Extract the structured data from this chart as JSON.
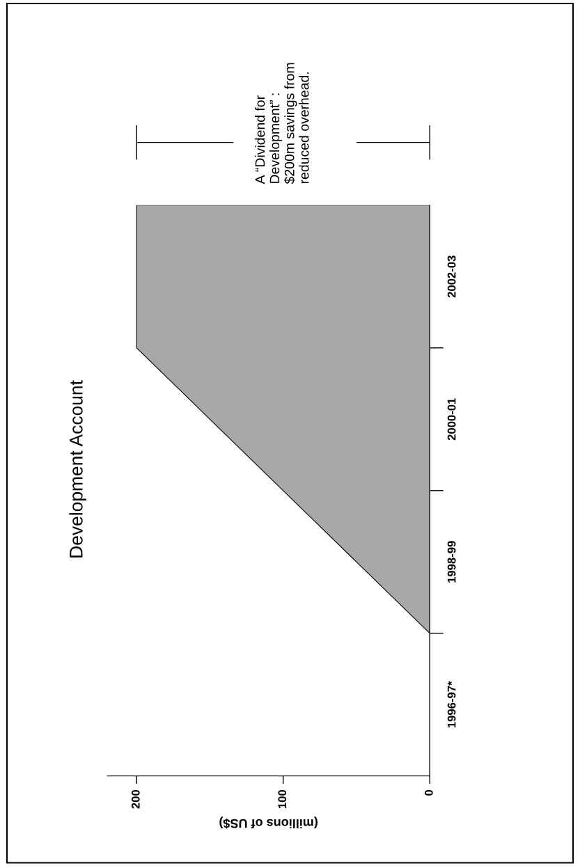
{
  "chart_data": {
    "type": "area",
    "orientation": "horizontal",
    "title": "Development Account",
    "xlabel": "(millions of US$)",
    "categories": [
      null,
      "2002-03",
      null,
      "2000-01",
      null,
      "1998-99",
      null,
      "1996-97*",
      null
    ],
    "values": [
      200,
      200,
      200,
      150,
      100,
      50,
      0,
      0,
      0
    ],
    "color": "#a8a8a8",
    "xlim": [
      220,
      0
    ],
    "xticks": [
      0,
      100,
      200
    ],
    "annotations": [
      "A “Dividend for\nDevelopment” :\n$200m savings from\nreduced overhead."
    ],
    "grid": false,
    "legend": false
  }
}
